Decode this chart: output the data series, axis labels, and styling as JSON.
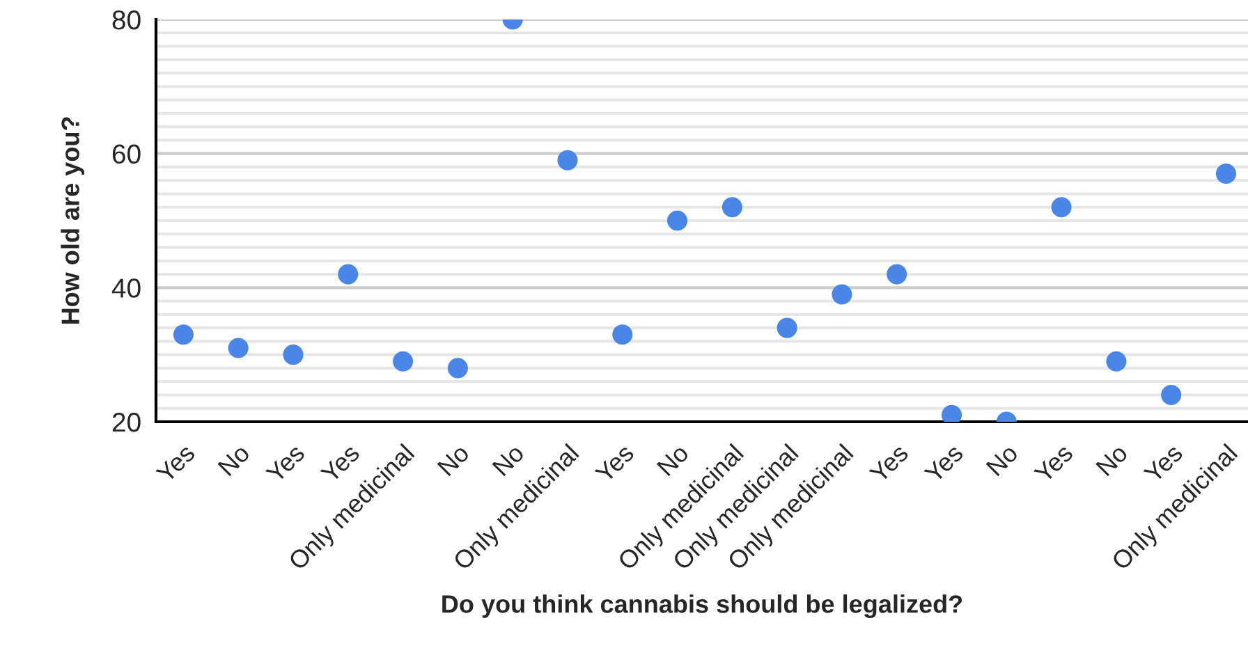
{
  "chart_data": {
    "type": "scatter",
    "xlabel": "Do you think cannabis should be legalized?",
    "ylabel": "How old are you?",
    "categories": [
      "Yes",
      "No",
      "Yes",
      "Yes",
      "Only medicinal",
      "No",
      "No",
      "Only medicinal",
      "Yes",
      "No",
      "Only medicinal",
      "Only medicinal",
      "Only medicinal",
      "Yes",
      "Yes",
      "No",
      "Yes",
      "No",
      "Yes",
      "Only medicinal"
    ],
    "values": [
      33,
      31,
      30,
      42,
      29,
      28,
      80,
      59,
      33,
      50,
      52,
      34,
      39,
      42,
      21,
      20,
      52,
      29,
      24,
      57
    ],
    "color": "#4a86e8",
    "marker": "circle",
    "ylim": [
      20,
      80
    ],
    "yticks": [
      20,
      {
        "value": 22,
        "label": null
      },
      {
        "value": 24,
        "label": null
      },
      {
        "value": 26,
        "label": null
      },
      {
        "value": 28,
        "label": null
      },
      {
        "value": 30,
        "label": null
      },
      {
        "value": 32,
        "label": null
      },
      {
        "value": 34,
        "label": null
      },
      {
        "value": 36,
        "label": null
      },
      {
        "value": 38,
        "label": null
      },
      40,
      {
        "value": 42,
        "label": null
      },
      {
        "value": 44,
        "label": null
      },
      {
        "value": 46,
        "label": null
      },
      {
        "value": 48,
        "label": null
      },
      {
        "value": 50,
        "label": null
      },
      {
        "value": 52,
        "label": null
      },
      {
        "value": 54,
        "label": null
      },
      {
        "value": 56,
        "label": null
      },
      {
        "value": 58,
        "label": null
      },
      60,
      {
        "value": 62,
        "label": null
      },
      {
        "value": 64,
        "label": null
      },
      {
        "value": 66,
        "label": null
      },
      {
        "value": 68,
        "label": null
      },
      {
        "value": 70,
        "label": null
      },
      {
        "value": 72,
        "label": null
      },
      {
        "value": 74,
        "label": null
      },
      {
        "value": 76,
        "label": null
      },
      {
        "value": 78,
        "label": null
      },
      80
    ],
    "grid": "y",
    "legend": false
  }
}
